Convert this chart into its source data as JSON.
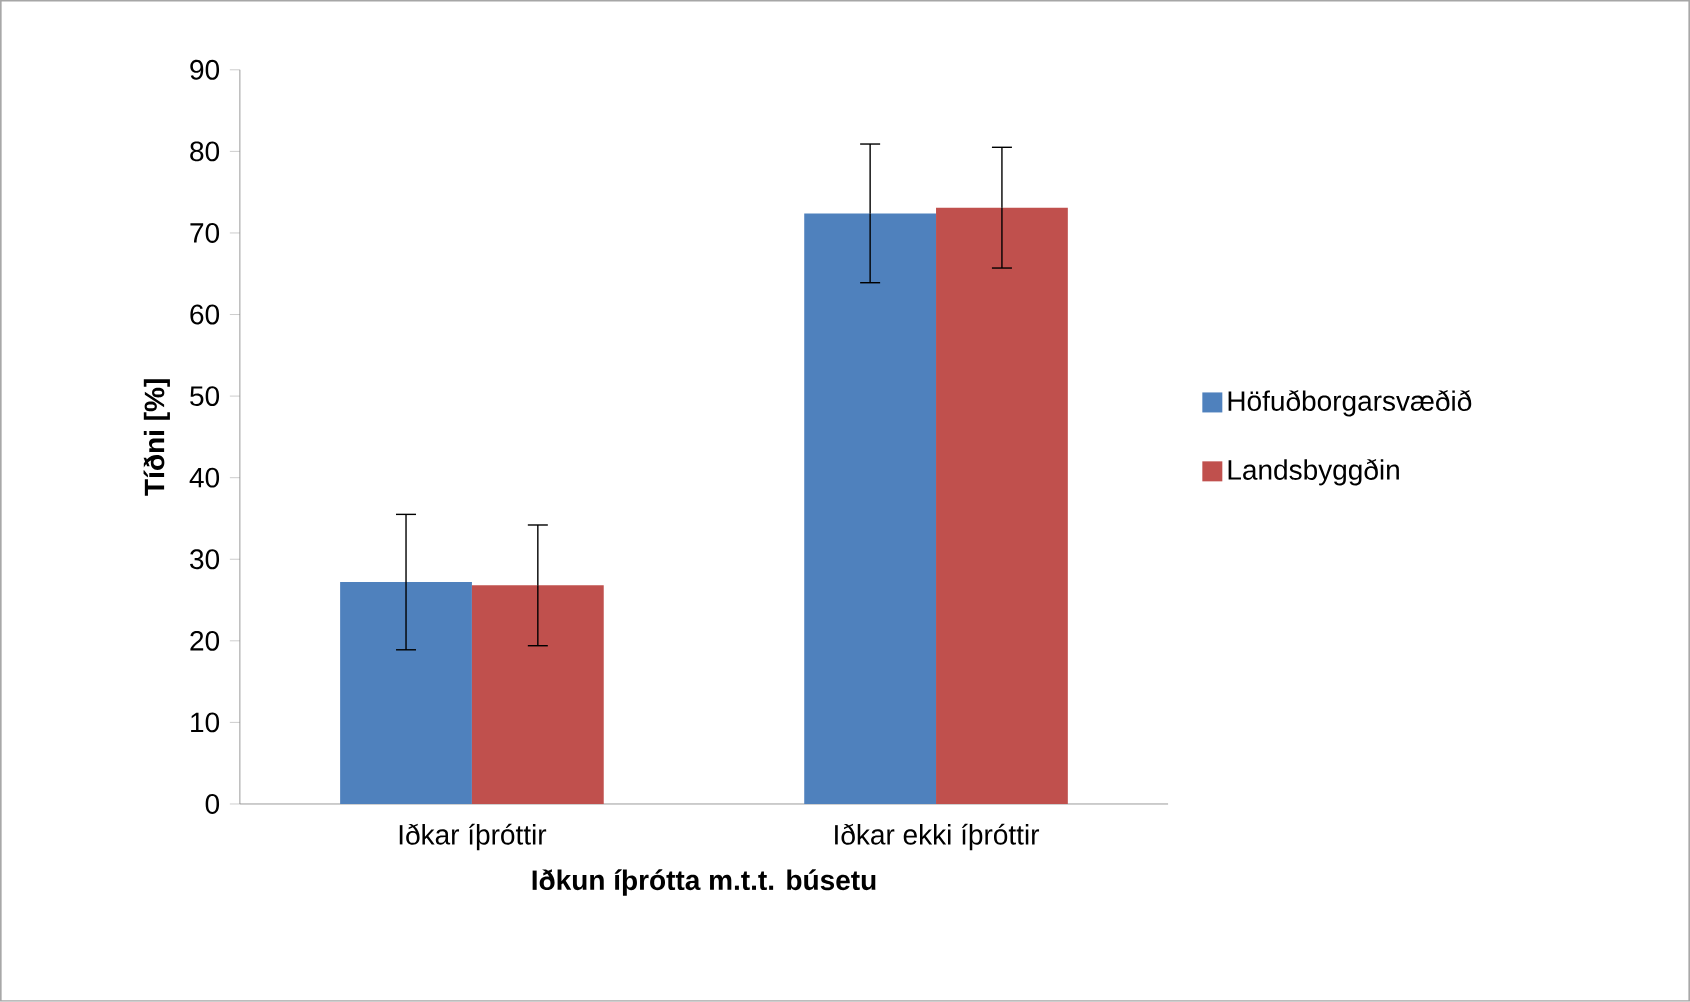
{
  "chart_data": {
    "type": "bar",
    "xlabel": "Iðkun íþrótta m.t.t. búsetu",
    "ylabel": "Tíðni [%]",
    "categories": [
      "Iðkar íþróttir",
      "Iðkar ekki íþróttir"
    ],
    "series": [
      {
        "name": "Höfuðborgarsvæðið",
        "color": "#4f81bd",
        "values": [
          27.2,
          72.4
        ],
        "errors": [
          8.3,
          8.5
        ]
      },
      {
        "name": "Landsbyggðin",
        "color": "#c0504d",
        "values": [
          26.8,
          73.1
        ],
        "errors": [
          7.4,
          7.4
        ]
      }
    ],
    "ylim": [
      0,
      90
    ],
    "yticks": [
      0,
      10,
      20,
      30,
      40,
      50,
      60,
      70,
      80,
      90
    ],
    "grid": false,
    "legend": "right"
  }
}
